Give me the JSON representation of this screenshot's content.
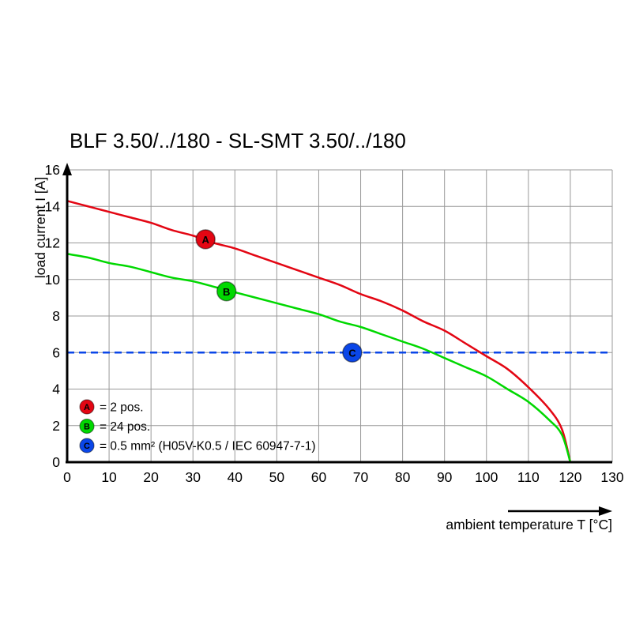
{
  "chart_data": {
    "type": "line",
    "title": "BLF 3.50/../180 - SL-SMT 3.50/../180",
    "xlabel": "ambient temperature T [°C]",
    "ylabel": "load current I [A]",
    "xlim": [
      0,
      130
    ],
    "ylim": [
      0,
      16
    ],
    "xticks": [
      0,
      10,
      20,
      30,
      40,
      50,
      60,
      70,
      80,
      90,
      100,
      110,
      120,
      130
    ],
    "yticks": [
      0,
      2,
      4,
      6,
      8,
      10,
      12,
      14,
      16
    ],
    "grid": true,
    "legend_position": "bottom-left",
    "colors": {
      "axis": "#000000",
      "grid": "#999999",
      "red": "#e30613",
      "green": "#00d800",
      "blue": "#0a46e8"
    },
    "series": [
      {
        "name": "A",
        "label": "2 pos.",
        "color_key": "red",
        "points": [
          [
            0,
            14.3
          ],
          [
            5,
            14.0
          ],
          [
            10,
            13.7
          ],
          [
            15,
            13.4
          ],
          [
            20,
            13.1
          ],
          [
            25,
            12.7
          ],
          [
            30,
            12.4
          ],
          [
            35,
            12.0
          ],
          [
            40,
            11.7
          ],
          [
            45,
            11.3
          ],
          [
            50,
            10.9
          ],
          [
            55,
            10.5
          ],
          [
            60,
            10.1
          ],
          [
            65,
            9.7
          ],
          [
            70,
            9.2
          ],
          [
            75,
            8.8
          ],
          [
            80,
            8.3
          ],
          [
            85,
            7.7
          ],
          [
            90,
            7.2
          ],
          [
            95,
            6.5
          ],
          [
            100,
            5.8
          ],
          [
            105,
            5.1
          ],
          [
            110,
            4.1
          ],
          [
            115,
            2.9
          ],
          [
            118,
            1.8
          ],
          [
            120,
            0
          ]
        ]
      },
      {
        "name": "B",
        "label": "24 pos.",
        "color_key": "green",
        "points": [
          [
            0,
            11.4
          ],
          [
            5,
            11.2
          ],
          [
            10,
            10.9
          ],
          [
            15,
            10.7
          ],
          [
            20,
            10.4
          ],
          [
            25,
            10.1
          ],
          [
            30,
            9.9
          ],
          [
            35,
            9.6
          ],
          [
            40,
            9.3
          ],
          [
            45,
            9.0
          ],
          [
            50,
            8.7
          ],
          [
            55,
            8.4
          ],
          [
            60,
            8.1
          ],
          [
            65,
            7.7
          ],
          [
            70,
            7.4
          ],
          [
            75,
            7.0
          ],
          [
            80,
            6.6
          ],
          [
            85,
            6.2
          ],
          [
            90,
            5.7
          ],
          [
            95,
            5.2
          ],
          [
            100,
            4.7
          ],
          [
            105,
            4.0
          ],
          [
            110,
            3.3
          ],
          [
            115,
            2.3
          ],
          [
            118,
            1.5
          ],
          [
            120,
            0
          ]
        ]
      }
    ],
    "reference_line": {
      "name": "C",
      "y": 6,
      "style": "dashed",
      "color_key": "blue"
    },
    "markers": [
      {
        "letter": "A",
        "x": 33,
        "y": 12.2,
        "color_key": "red"
      },
      {
        "letter": "B",
        "x": 38,
        "y": 9.35,
        "color_key": "green"
      },
      {
        "letter": "C",
        "x": 68,
        "y": 6.0,
        "color_key": "blue"
      }
    ],
    "legend": [
      {
        "letter": "A",
        "color_key": "red",
        "text": "= 2 pos."
      },
      {
        "letter": "B",
        "color_key": "green",
        "text": "= 24 pos."
      },
      {
        "letter": "C",
        "color_key": "blue",
        "text": "= 0.5 mm² (H05V-K0.5 / IEC 60947-7-1)"
      }
    ]
  }
}
